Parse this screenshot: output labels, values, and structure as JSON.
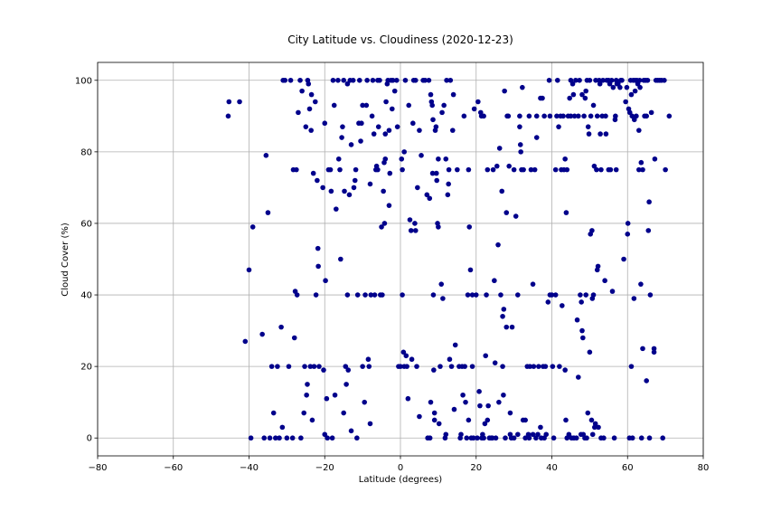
{
  "chart_data": {
    "type": "scatter",
    "title": "City Latitude vs. Cloudiness (2020-12-23)",
    "xlabel": "Latitude (degrees)",
    "ylabel": "Cloud Cover (%)",
    "xlim": [
      -80,
      80
    ],
    "ylim": [
      -5,
      105
    ],
    "xticks": [
      -80,
      -60,
      -40,
      -20,
      0,
      20,
      40,
      60,
      80
    ],
    "yticks": [
      0,
      20,
      40,
      60,
      80,
      100
    ],
    "grid": true,
    "marker_color": "#00008b",
    "points": [
      [
        -45.5,
        90
      ],
      [
        -45.3,
        94
      ],
      [
        -42.5,
        94
      ],
      [
        -41,
        27
      ],
      [
        -40,
        47
      ],
      [
        -39.5,
        0
      ],
      [
        -39,
        59
      ],
      [
        -36.5,
        29
      ],
      [
        -36,
        0
      ],
      [
        -35.5,
        79
      ],
      [
        -35,
        63
      ],
      [
        -34.5,
        0
      ],
      [
        -34,
        20
      ],
      [
        -33.5,
        7
      ],
      [
        -33,
        0
      ],
      [
        -32.5,
        20
      ],
      [
        -32,
        0
      ],
      [
        -31.5,
        31
      ],
      [
        -31.2,
        3
      ],
      [
        -31,
        100
      ],
      [
        -30.5,
        100
      ],
      [
        -30,
        0
      ],
      [
        -29.5,
        20
      ],
      [
        -29,
        100
      ],
      [
        -28.5,
        0
      ],
      [
        -28.3,
        75
      ],
      [
        -28,
        28
      ],
      [
        -27.8,
        41
      ],
      [
        -27.5,
        75
      ],
      [
        -27.3,
        40
      ],
      [
        -27,
        91
      ],
      [
        -26.5,
        100
      ],
      [
        -26.3,
        0
      ],
      [
        -26,
        97
      ],
      [
        -25.5,
        7
      ],
      [
        -25.3,
        20
      ],
      [
        -25,
        87
      ],
      [
        -24.8,
        12
      ],
      [
        -24.6,
        15
      ],
      [
        -24.5,
        100
      ],
      [
        -24.3,
        99
      ],
      [
        -24,
        92
      ],
      [
        -23.8,
        20
      ],
      [
        -23.6,
        86
      ],
      [
        -23.5,
        96
      ],
      [
        -23.3,
        5
      ],
      [
        -23,
        74
      ],
      [
        -22.8,
        20
      ],
      [
        -22.5,
        94
      ],
      [
        -22.3,
        40
      ],
      [
        -22,
        72
      ],
      [
        -21.8,
        53
      ],
      [
        -21.7,
        48
      ],
      [
        -21.5,
        20
      ],
      [
        -20.5,
        70
      ],
      [
        -20.3,
        19
      ],
      [
        -20,
        88
      ],
      [
        -20,
        1
      ],
      [
        -19.8,
        44
      ],
      [
        -19.5,
        11
      ],
      [
        -19.3,
        0
      ],
      [
        -19,
        75
      ],
      [
        -18.5,
        75
      ],
      [
        -18.3,
        69
      ],
      [
        -18,
        0
      ],
      [
        -17.8,
        100
      ],
      [
        -17.5,
        93
      ],
      [
        -17.3,
        12
      ],
      [
        -17,
        64
      ],
      [
        -16.5,
        100
      ],
      [
        -16.3,
        78
      ],
      [
        -16,
        75
      ],
      [
        -15.8,
        50
      ],
      [
        -15.5,
        84
      ],
      [
        -15.3,
        87
      ],
      [
        -15,
        100
      ],
      [
        -15,
        7
      ],
      [
        -14.8,
        69
      ],
      [
        -14.5,
        20
      ],
      [
        -14.3,
        15
      ],
      [
        -14,
        40
      ],
      [
        -14,
        99
      ],
      [
        -13.8,
        19
      ],
      [
        -13.5,
        68
      ],
      [
        -13.3,
        100
      ],
      [
        -13,
        2
      ],
      [
        -13,
        82
      ],
      [
        -12.5,
        100
      ],
      [
        -12.3,
        70
      ],
      [
        -12,
        72
      ],
      [
        -11.8,
        75
      ],
      [
        -11.5,
        0
      ],
      [
        -11.3,
        40
      ],
      [
        -11,
        88
      ],
      [
        -10.8,
        100
      ],
      [
        -10.5,
        83
      ],
      [
        -10.3,
        88
      ],
      [
        -10,
        93
      ],
      [
        -10,
        20
      ],
      [
        -9.5,
        10
      ],
      [
        -9.3,
        40
      ],
      [
        -9,
        93
      ],
      [
        -8.8,
        100
      ],
      [
        -8.5,
        22
      ],
      [
        -8.3,
        20
      ],
      [
        -8,
        71
      ],
      [
        -8,
        4
      ],
      [
        -7.8,
        40
      ],
      [
        -7.5,
        90
      ],
      [
        -7.3,
        100
      ],
      [
        -7,
        85
      ],
      [
        -6.8,
        40
      ],
      [
        -6.5,
        75
      ],
      [
        -6.3,
        76
      ],
      [
        -6,
        100
      ],
      [
        -6,
        75
      ],
      [
        -5.8,
        87
      ],
      [
        -5.5,
        100
      ],
      [
        -5.3,
        40
      ],
      [
        -5,
        59
      ],
      [
        -4.8,
        40
      ],
      [
        -4.5,
        69
      ],
      [
        -4.3,
        77
      ],
      [
        -4.2,
        60
      ],
      [
        -4,
        78
      ],
      [
        -4,
        85
      ],
      [
        -3.8,
        94
      ],
      [
        -3.5,
        99
      ],
      [
        -3.3,
        100
      ],
      [
        -3,
        65
      ],
      [
        -3,
        86
      ],
      [
        -2.8,
        74
      ],
      [
        -2.5,
        100
      ],
      [
        -2.2,
        92
      ],
      [
        -2,
        100
      ],
      [
        -1.5,
        97
      ],
      [
        -1,
        100
      ],
      [
        -0.8,
        87
      ],
      [
        -0.5,
        20
      ],
      [
        0,
        20
      ],
      [
        0.3,
        78
      ],
      [
        0.5,
        75
      ],
      [
        0.5,
        40
      ],
      [
        0.8,
        24
      ],
      [
        1,
        80
      ],
      [
        1,
        20
      ],
      [
        1.3,
        100
      ],
      [
        1.5,
        23
      ],
      [
        1.7,
        20
      ],
      [
        2,
        11
      ],
      [
        2.2,
        93
      ],
      [
        2.5,
        61
      ],
      [
        2.8,
        58
      ],
      [
        3,
        22
      ],
      [
        3.3,
        88
      ],
      [
        3.5,
        100
      ],
      [
        3.8,
        60
      ],
      [
        4,
        58
      ],
      [
        4,
        100
      ],
      [
        4.3,
        20
      ],
      [
        4.5,
        70
      ],
      [
        5,
        86
      ],
      [
        5,
        6
      ],
      [
        5.5,
        79
      ],
      [
        6,
        100
      ],
      [
        6.5,
        100
      ],
      [
        7,
        68
      ],
      [
        7.2,
        0
      ],
      [
        7.5,
        100
      ],
      [
        7.7,
        67
      ],
      [
        7.8,
        0
      ],
      [
        8,
        10
      ],
      [
        8,
        96
      ],
      [
        8.2,
        94
      ],
      [
        8.4,
        93
      ],
      [
        8.5,
        74
      ],
      [
        8.6,
        89
      ],
      [
        8.7,
        40
      ],
      [
        8.8,
        19
      ],
      [
        9,
        7
      ],
      [
        9,
        5
      ],
      [
        9.2,
        86
      ],
      [
        9.4,
        87
      ],
      [
        9.5,
        74
      ],
      [
        9.6,
        72
      ],
      [
        9.8,
        60
      ],
      [
        10,
        59
      ],
      [
        10,
        78
      ],
      [
        10.2,
        4
      ],
      [
        10.5,
        20
      ],
      [
        10.8,
        43
      ],
      [
        11,
        91
      ],
      [
        11.2,
        39
      ],
      [
        11.5,
        93
      ],
      [
        11.8,
        0
      ],
      [
        12,
        1
      ],
      [
        12,
        78
      ],
      [
        12.2,
        100
      ],
      [
        12.5,
        68
      ],
      [
        12.7,
        71
      ],
      [
        12.8,
        75
      ],
      [
        13,
        22
      ],
      [
        13.2,
        100
      ],
      [
        13.5,
        20
      ],
      [
        13.8,
        86
      ],
      [
        14,
        96
      ],
      [
        14.2,
        8
      ],
      [
        14.5,
        26
      ],
      [
        15,
        75
      ],
      [
        15.5,
        20
      ],
      [
        15.8,
        0
      ],
      [
        16,
        1
      ],
      [
        16.3,
        20
      ],
      [
        16.5,
        12
      ],
      [
        16.8,
        90
      ],
      [
        17,
        20
      ],
      [
        17.2,
        10
      ],
      [
        17.5,
        0
      ],
      [
        17.8,
        40
      ],
      [
        18,
        75
      ],
      [
        18,
        5
      ],
      [
        18.2,
        59
      ],
      [
        18.5,
        47
      ],
      [
        18.7,
        0
      ],
      [
        19,
        40
      ],
      [
        19,
        20
      ],
      [
        19.3,
        0
      ],
      [
        19.5,
        92
      ],
      [
        20,
        40
      ],
      [
        20.3,
        0
      ],
      [
        20.5,
        94
      ],
      [
        20.8,
        13
      ],
      [
        21,
        9
      ],
      [
        21.2,
        91
      ],
      [
        21.4,
        90
      ],
      [
        21.5,
        0
      ],
      [
        21.7,
        1
      ],
      [
        22,
        90
      ],
      [
        22,
        0
      ],
      [
        22.3,
        4
      ],
      [
        22.5,
        23
      ],
      [
        22.7,
        40
      ],
      [
        23,
        75
      ],
      [
        23,
        5
      ],
      [
        23.2,
        9
      ],
      [
        23.5,
        0
      ],
      [
        24,
        0
      ],
      [
        24.3,
        0
      ],
      [
        24.5,
        75
      ],
      [
        24.8,
        44
      ],
      [
        25,
        21
      ],
      [
        25.2,
        0
      ],
      [
        25.5,
        76
      ],
      [
        25.8,
        54
      ],
      [
        26,
        10
      ],
      [
        26.2,
        81
      ],
      [
        26.5,
        40
      ],
      [
        26.8,
        69
      ],
      [
        27,
        20
      ],
      [
        27,
        34
      ],
      [
        27.2,
        12
      ],
      [
        27.3,
        36
      ],
      [
        27.5,
        97
      ],
      [
        27.7,
        0
      ],
      [
        28,
        31
      ],
      [
        28,
        63
      ],
      [
        28.2,
        90
      ],
      [
        28.5,
        90
      ],
      [
        28.7,
        76
      ],
      [
        29,
        7
      ],
      [
        29,
        1
      ],
      [
        29.3,
        0
      ],
      [
        29.5,
        31
      ],
      [
        30,
        75
      ],
      [
        30,
        0
      ],
      [
        30.5,
        62
      ],
      [
        31,
        40
      ],
      [
        31,
        1
      ],
      [
        31.5,
        90
      ],
      [
        31.5,
        87
      ],
      [
        31.7,
        82
      ],
      [
        31.8,
        80
      ],
      [
        32,
        75
      ],
      [
        32.2,
        98
      ],
      [
        32.4,
        5
      ],
      [
        32.5,
        75
      ],
      [
        33,
        5
      ],
      [
        33,
        0
      ],
      [
        33.5,
        20
      ],
      [
        33.8,
        1
      ],
      [
        34,
        90
      ],
      [
        34,
        0
      ],
      [
        34.2,
        20
      ],
      [
        34.5,
        75
      ],
      [
        35,
        43
      ],
      [
        35,
        1
      ],
      [
        35.2,
        20
      ],
      [
        35.5,
        75
      ],
      [
        35.8,
        0
      ],
      [
        36,
        90
      ],
      [
        36,
        84
      ],
      [
        36.3,
        1
      ],
      [
        36.5,
        20
      ],
      [
        37,
        3
      ],
      [
        37,
        95
      ],
      [
        37.2,
        0
      ],
      [
        37.5,
        95
      ],
      [
        37.7,
        20
      ],
      [
        38,
        90
      ],
      [
        38,
        0
      ],
      [
        38.3,
        20
      ],
      [
        38.5,
        1
      ],
      [
        39,
        38
      ],
      [
        39.3,
        100
      ],
      [
        39.5,
        40
      ],
      [
        39.5,
        90
      ],
      [
        40,
        40
      ],
      [
        40.2,
        20
      ],
      [
        40.5,
        0
      ],
      [
        41,
        40
      ],
      [
        41,
        75
      ],
      [
        41.3,
        90
      ],
      [
        41.5,
        100
      ],
      [
        41.8,
        87
      ],
      [
        42,
        20
      ],
      [
        42.3,
        90
      ],
      [
        42.5,
        75
      ],
      [
        42.7,
        37
      ],
      [
        43,
        90
      ],
      [
        43.2,
        75
      ],
      [
        43.5,
        19
      ],
      [
        43.5,
        78
      ],
      [
        43.7,
        5
      ],
      [
        43.8,
        63
      ],
      [
        44,
        75
      ],
      [
        44,
        0
      ],
      [
        44.3,
        90
      ],
      [
        44.5,
        1
      ],
      [
        44.7,
        95
      ],
      [
        45,
        100
      ],
      [
        45,
        90
      ],
      [
        45.2,
        0
      ],
      [
        45.5,
        99
      ],
      [
        45.7,
        96
      ],
      [
        45.8,
        0
      ],
      [
        46,
        90
      ],
      [
        46.3,
        100
      ],
      [
        46.5,
        0
      ],
      [
        46.7,
        33
      ],
      [
        47,
        90
      ],
      [
        47,
        17
      ],
      [
        47.3,
        100
      ],
      [
        47.5,
        40
      ],
      [
        47.7,
        1
      ],
      [
        47.8,
        38
      ],
      [
        48,
        30
      ],
      [
        48,
        96
      ],
      [
        48.2,
        28
      ],
      [
        48.3,
        1
      ],
      [
        48.5,
        90
      ],
      [
        48.7,
        0
      ],
      [
        48.8,
        95
      ],
      [
        49,
        97
      ],
      [
        49,
        40
      ],
      [
        49.2,
        0
      ],
      [
        49.3,
        100
      ],
      [
        49.5,
        7
      ],
      [
        49.6,
        87
      ],
      [
        49.8,
        85
      ],
      [
        50,
        100
      ],
      [
        50,
        24
      ],
      [
        50.2,
        57
      ],
      [
        50.3,
        90
      ],
      [
        50.5,
        5
      ],
      [
        50.6,
        58
      ],
      [
        50.7,
        39
      ],
      [
        50.8,
        1
      ],
      [
        51,
        93
      ],
      [
        51,
        40
      ],
      [
        51.2,
        76
      ],
      [
        51.3,
        3
      ],
      [
        51.5,
        4
      ],
      [
        51.6,
        100
      ],
      [
        51.8,
        75
      ],
      [
        52,
        90
      ],
      [
        52,
        47
      ],
      [
        52.2,
        48
      ],
      [
        52.3,
        3
      ],
      [
        52.5,
        100
      ],
      [
        52.7,
        99
      ],
      [
        52.8,
        85
      ],
      [
        53,
        0
      ],
      [
        53,
        75
      ],
      [
        53.3,
        90
      ],
      [
        53.5,
        100
      ],
      [
        53.7,
        0
      ],
      [
        54,
        44
      ],
      [
        54.2,
        90
      ],
      [
        54.3,
        85
      ],
      [
        54.5,
        100
      ],
      [
        55,
        100
      ],
      [
        55,
        75
      ],
      [
        55.3,
        99
      ],
      [
        55.5,
        75
      ],
      [
        55.8,
        100
      ],
      [
        56,
        41
      ],
      [
        56.2,
        98
      ],
      [
        56.5,
        0
      ],
      [
        56.7,
        89
      ],
      [
        56.8,
        90
      ],
      [
        57,
        100
      ],
      [
        57,
        75
      ],
      [
        57.2,
        99
      ],
      [
        57.5,
        99
      ],
      [
        58,
        98
      ],
      [
        58.2,
        100
      ],
      [
        58.5,
        100
      ],
      [
        59,
        50
      ],
      [
        59.5,
        94
      ],
      [
        59.8,
        98
      ],
      [
        60,
        57
      ],
      [
        60.1,
        60
      ],
      [
        60.3,
        92
      ],
      [
        60.5,
        0
      ],
      [
        60.6,
        91
      ],
      [
        60.8,
        100
      ],
      [
        61,
        20
      ],
      [
        61,
        96
      ],
      [
        61.2,
        90
      ],
      [
        61.3,
        0
      ],
      [
        61.5,
        100
      ],
      [
        61.7,
        39
      ],
      [
        61.8,
        89
      ],
      [
        62,
        100
      ],
      [
        62,
        97
      ],
      [
        62.3,
        90
      ],
      [
        62.5,
        100
      ],
      [
        62.7,
        99
      ],
      [
        63,
        86
      ],
      [
        63,
        75
      ],
      [
        63.2,
        100
      ],
      [
        63.3,
        98
      ],
      [
        63.5,
        43
      ],
      [
        63.6,
        77
      ],
      [
        63.7,
        0
      ],
      [
        64,
        75
      ],
      [
        64,
        25
      ],
      [
        64.3,
        100
      ],
      [
        64.5,
        90
      ],
      [
        64.8,
        100
      ],
      [
        65,
        16
      ],
      [
        65,
        90
      ],
      [
        65.3,
        100
      ],
      [
        65.5,
        58
      ],
      [
        65.7,
        66
      ],
      [
        65.8,
        0
      ],
      [
        66,
        40
      ],
      [
        66.3,
        91
      ],
      [
        67,
        24
      ],
      [
        67,
        25
      ],
      [
        67.2,
        78
      ],
      [
        67.5,
        100
      ],
      [
        68,
        100
      ],
      [
        68.5,
        100
      ],
      [
        69,
        100
      ],
      [
        69.3,
        0
      ],
      [
        69.7,
        100
      ],
      [
        70,
        75
      ],
      [
        71,
        90
      ]
    ]
  }
}
